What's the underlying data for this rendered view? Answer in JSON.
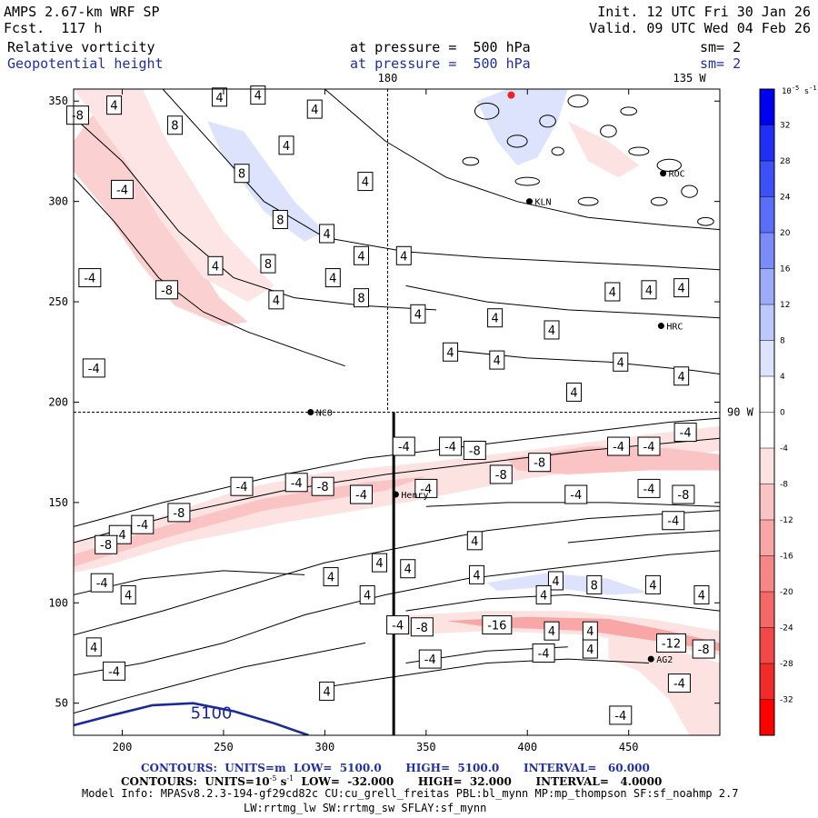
{
  "header": {
    "model": "AMPS 2.67-km WRF SP",
    "forecast": "Fcst.  117 h",
    "init": "Init. 12 UTC Fri 30 Jan 26",
    "valid": "Valid. 09 UTC Wed 04 Feb 26",
    "field1": "Relative vorticity",
    "field2": "Geopotential height",
    "pressure1": "at pressure =  500 hPa",
    "pressure2": "at pressure =  500 hPa",
    "sm1": "sm= 2",
    "sm2": "sm= 2"
  },
  "colors": {
    "blue_text": "#1f2fa8",
    "height_contour": "#1b2a9b"
  },
  "chart_data": {
    "type": "heatmap",
    "xlim": [
      176,
      495
    ],
    "ylim": [
      34,
      356
    ],
    "xticks": [
      200,
      250,
      300,
      350,
      400,
      450
    ],
    "yticks": [
      50,
      100,
      150,
      200,
      250,
      300,
      350
    ],
    "top_labels": [
      {
        "text": "180",
        "x": 331
      },
      {
        "text": "135 W",
        "x": 480
      }
    ],
    "right_labels": [
      {
        "text": "90 W",
        "y": 195
      }
    ],
    "meridian_x": 331,
    "parallel_y": 195,
    "cross_section_x": 334,
    "colorbar": {
      "units": "10",
      "units_exp": "-5",
      "units_tail": " s",
      "units_exp2": "-1",
      "levels": [
        36,
        32,
        28,
        24,
        20,
        16,
        12,
        8,
        4,
        0,
        -4,
        -8,
        -12,
        -16,
        -20,
        -24,
        -28,
        -32,
        -36
      ],
      "tick_labels": [
        "32",
        "28",
        "24",
        "20",
        "16",
        "12",
        "8",
        "4",
        "0",
        "-4",
        "-8",
        "-12",
        "-16",
        "-20",
        "-24",
        "-28",
        "-32"
      ],
      "colors": [
        "#0000f0",
        "#1f2ff5",
        "#3d4ff6",
        "#5a6ef7",
        "#7a8cf9",
        "#9cacfa",
        "#bdc8fc",
        "#dde3fd",
        "#ffffff",
        "#ffffff",
        "#fde2e2",
        "#fbc4c4",
        "#f9a6a6",
        "#f78787",
        "#f56868",
        "#f34848",
        "#f12a2a",
        "#ff0000"
      ]
    },
    "stations": [
      {
        "name": "NCO",
        "x": 293,
        "y": 195
      },
      {
        "name": "Henry",
        "x": 335,
        "y": 154
      },
      {
        "name": "KLN",
        "x": 401,
        "y": 300
      },
      {
        "name": "ROC",
        "x": 467,
        "y": 314
      },
      {
        "name": "HRC",
        "x": 466,
        "y": 238
      },
      {
        "name": "AG2",
        "x": 461,
        "y": 72
      }
    ],
    "contour_labels": [
      {
        "v": "-8",
        "x": 178,
        "y": 343
      },
      {
        "v": "4",
        "x": 196,
        "y": 348
      },
      {
        "v": "4",
        "x": 248,
        "y": 352
      },
      {
        "v": "4",
        "x": 267,
        "y": 353
      },
      {
        "v": "4",
        "x": 295,
        "y": 346
      },
      {
        "v": "-4",
        "x": 200,
        "y": 306
      },
      {
        "v": "8",
        "x": 226,
        "y": 338
      },
      {
        "v": "8",
        "x": 259,
        "y": 314
      },
      {
        "v": "4",
        "x": 281,
        "y": 328
      },
      {
        "v": "4",
        "x": 320,
        "y": 310
      },
      {
        "v": "-4",
        "x": 184,
        "y": 262
      },
      {
        "v": "8",
        "x": 278,
        "y": 291
      },
      {
        "v": "4",
        "x": 301,
        "y": 284
      },
      {
        "v": "8",
        "x": 272,
        "y": 269
      },
      {
        "v": "4",
        "x": 304,
        "y": 262
      },
      {
        "v": "4",
        "x": 318,
        "y": 273
      },
      {
        "v": "4",
        "x": 339,
        "y": 273
      },
      {
        "v": "-8",
        "x": 222,
        "y": 256
      },
      {
        "v": "4",
        "x": 246,
        "y": 268
      },
      {
        "v": "4",
        "x": 276,
        "y": 251
      },
      {
        "v": "8",
        "x": 318,
        "y": 252
      },
      {
        "v": "4",
        "x": 346,
        "y": 244
      },
      {
        "v": "-4",
        "x": 186,
        "y": 217
      },
      {
        "v": "4",
        "x": 362,
        "y": 225
      },
      {
        "v": "4",
        "x": 385,
        "y": 221
      },
      {
        "v": "4",
        "x": 384,
        "y": 242
      },
      {
        "v": "4",
        "x": 412,
        "y": 236
      },
      {
        "v": "4",
        "x": 442,
        "y": 255
      },
      {
        "v": "4",
        "x": 460,
        "y": 256
      },
      {
        "v": "4",
        "x": 476,
        "y": 257
      },
      {
        "v": "4",
        "x": 446,
        "y": 220
      },
      {
        "v": "4",
        "x": 476,
        "y": 213
      },
      {
        "v": "4",
        "x": 423,
        "y": 205
      },
      {
        "v": "-4",
        "x": 478,
        "y": 185
      },
      {
        "v": "-4",
        "x": 339,
        "y": 178
      },
      {
        "v": "-4",
        "x": 362,
        "y": 178
      },
      {
        "v": "-8",
        "x": 374,
        "y": 176
      },
      {
        "v": "-4",
        "x": 445,
        "y": 178
      },
      {
        "v": "-4",
        "x": 460,
        "y": 178
      },
      {
        "v": "-8",
        "x": 406,
        "y": 170
      },
      {
        "v": "-8",
        "x": 387,
        "y": 164
      },
      {
        "v": "-4",
        "x": 259,
        "y": 158
      },
      {
        "v": "-4",
        "x": 286,
        "y": 160
      },
      {
        "v": "-8",
        "x": 299,
        "y": 158
      },
      {
        "v": "-4",
        "x": 318,
        "y": 154
      },
      {
        "v": "-4",
        "x": 350,
        "y": 157
      },
      {
        "v": "-4",
        "x": 424,
        "y": 154
      },
      {
        "v": "-4",
        "x": 460,
        "y": 157
      },
      {
        "v": "-8",
        "x": 477,
        "y": 154
      },
      {
        "v": "-8",
        "x": 228,
        "y": 145
      },
      {
        "v": "-4",
        "x": 210,
        "y": 139
      },
      {
        "v": "-4",
        "x": 199,
        "y": 134
      },
      {
        "v": "-8",
        "x": 192,
        "y": 129
      },
      {
        "v": "-4",
        "x": 472,
        "y": 141
      },
      {
        "v": "4",
        "x": 374,
        "y": 131
      },
      {
        "v": "4",
        "x": 327,
        "y": 120
      },
      {
        "v": "4",
        "x": 341,
        "y": 117
      },
      {
        "v": "4",
        "x": 303,
        "y": 113
      },
      {
        "v": "-4",
        "x": 190,
        "y": 110
      },
      {
        "v": "4",
        "x": 375,
        "y": 114
      },
      {
        "v": "4",
        "x": 414,
        "y": 111
      },
      {
        "v": "4",
        "x": 462,
        "y": 109
      },
      {
        "v": "4",
        "x": 486,
        "y": 104
      },
      {
        "v": "4",
        "x": 408,
        "y": 104
      },
      {
        "v": "4",
        "x": 203,
        "y": 104
      },
      {
        "v": "4",
        "x": 321,
        "y": 104
      },
      {
        "v": "8",
        "x": 433,
        "y": 109
      },
      {
        "v": "-4",
        "x": 336,
        "y": 89
      },
      {
        "v": "-8",
        "x": 348,
        "y": 88
      },
      {
        "v": "-16",
        "x": 385,
        "y": 89
      },
      {
        "v": "4",
        "x": 412,
        "y": 86
      },
      {
        "v": "4",
        "x": 431,
        "y": 86
      },
      {
        "v": "-12",
        "x": 471,
        "y": 80
      },
      {
        "v": "-8",
        "x": 487,
        "y": 77
      },
      {
        "v": "4",
        "x": 186,
        "y": 78
      },
      {
        "v": "4",
        "x": 431,
        "y": 77
      },
      {
        "v": "-4",
        "x": 408,
        "y": 75
      },
      {
        "v": "-4",
        "x": 352,
        "y": 72
      },
      {
        "v": "-4",
        "x": 196,
        "y": 66
      },
      {
        "v": "-4",
        "x": 475,
        "y": 60
      },
      {
        "v": "4",
        "x": 301,
        "y": 56
      },
      {
        "v": "-4",
        "x": 446,
        "y": 44
      }
    ],
    "height_label": {
      "value": "5100",
      "x": 244,
      "y": 45
    },
    "footer": {
      "line1_lead": "CONTOURS:  UNITS=m  LOW=  5100.0",
      "line1_high": "HIGH=  5100.0",
      "line1_int": "INTERVAL=   60.000",
      "line2_lead": "CONTOURS:  UNITS=10",
      "line2_exp": "-5",
      "line2_s": " s",
      "line2_exp2": "-1",
      "line2_low": "  LOW=  -32.000",
      "line2_high": "HIGH=  32.000",
      "line2_int": "INTERVAL=   4.0000",
      "model_info": "Model Info: MPASv8.2.3-194-gf29cd82c CU:cu_grell_freitas PBL:bl_mynn MP:mp_thompson SF:sf_noahmp 2.7",
      "model_info2": "LW:rrtmg_lw SW:rrtmg_sw SFLAY:sf_mynn"
    }
  }
}
